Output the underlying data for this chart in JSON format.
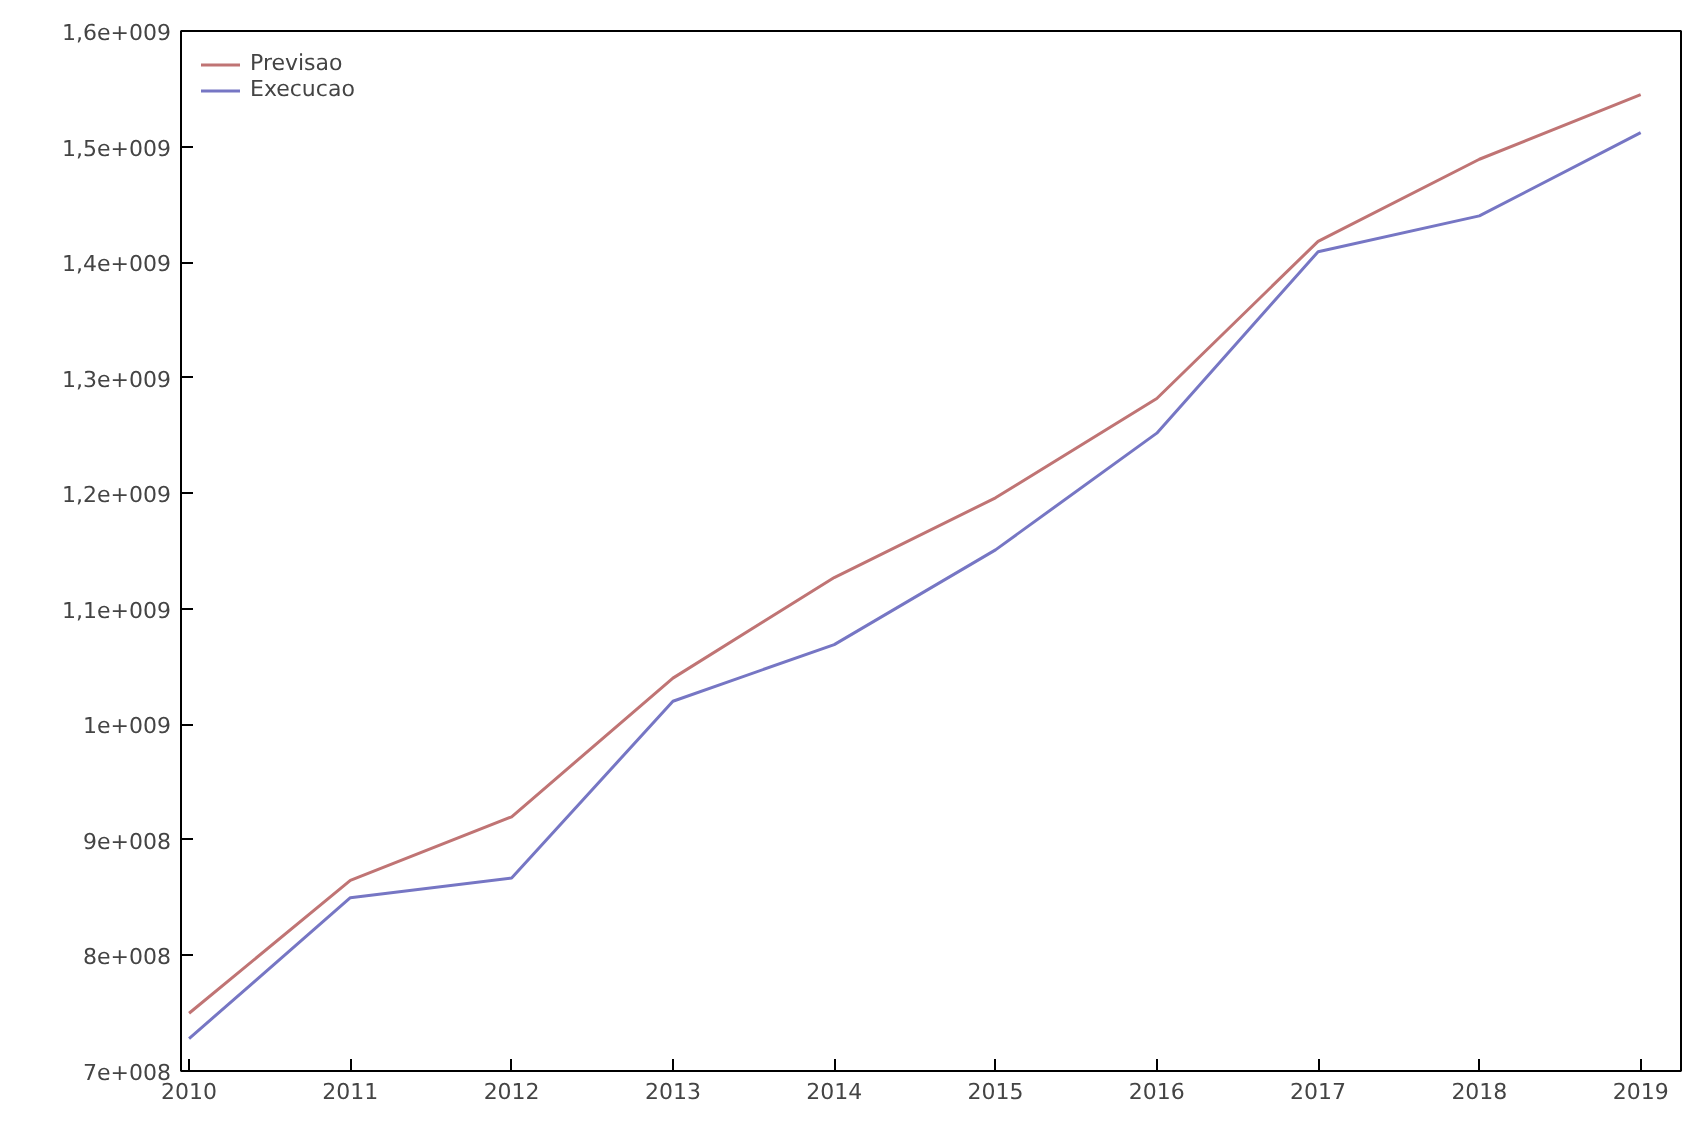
{
  "chart_data": {
    "type": "line",
    "x": [
      2010,
      2011,
      2012,
      2013,
      2014,
      2015,
      2016,
      2017,
      2018,
      2019
    ],
    "series": [
      {
        "name": "Previsao",
        "color": "#c07474",
        "values": [
          750000000,
          865000000,
          920000000,
          1040000000,
          1127000000,
          1196000000,
          1282000000,
          1418000000,
          1489000000,
          1545000000
        ]
      },
      {
        "name": "Execucao",
        "color": "#7676c4",
        "values": [
          728000000,
          850000000,
          867000000,
          1020000000,
          1069000000,
          1151000000,
          1252000000,
          1409000000,
          1440000000,
          1512000000
        ]
      }
    ],
    "xlim": [
      2009.95,
      2019.25
    ],
    "xticks": [
      2010,
      2011,
      2012,
      2013,
      2014,
      2015,
      2016,
      2017,
      2018,
      2019
    ],
    "ylim": [
      700000000,
      1600000000
    ],
    "yticks": [
      {
        "value": 700000000,
        "label": "7e+008"
      },
      {
        "value": 800000000,
        "label": "8e+008"
      },
      {
        "value": 900000000,
        "label": "9e+008"
      },
      {
        "value": 1000000000,
        "label": "1e+009"
      },
      {
        "value": 1100000000,
        "label": "1,1e+009"
      },
      {
        "value": 1200000000,
        "label": "1,2e+009"
      },
      {
        "value": 1300000000,
        "label": "1,3e+009"
      },
      {
        "value": 1400000000,
        "label": "1,4e+009"
      },
      {
        "value": 1500000000,
        "label": "1,5e+009"
      },
      {
        "value": 1600000000,
        "label": "1,6e+009"
      }
    ],
    "grid": false,
    "legend": "top left",
    "line_style": "solid"
  }
}
